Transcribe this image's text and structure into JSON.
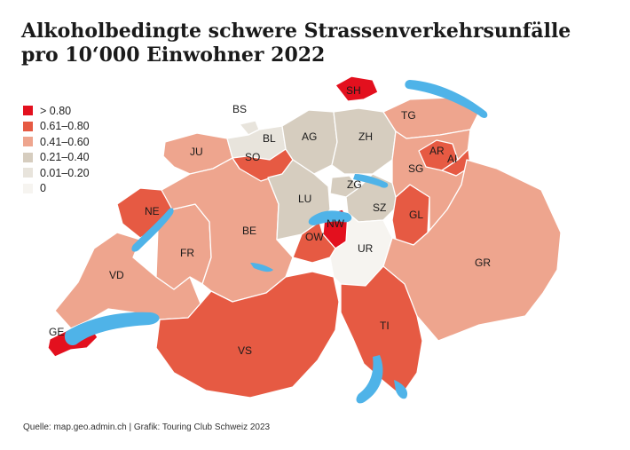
{
  "title_line1": "Alkoholbedingte schwere Strassenverkehrsunfälle",
  "title_line2": "pro 10‘000 Einwohner 2022",
  "legend": [
    {
      "label": "> 0.80",
      "color": "#e3101e"
    },
    {
      "label": "0.61–0.80",
      "color": "#e65a43"
    },
    {
      "label": "0.41–0.60",
      "color": "#eea58e"
    },
    {
      "label": "0.21–0.40",
      "color": "#d6cdbf"
    },
    {
      "label": "0.01–0.20",
      "color": "#e8e4dc"
    },
    {
      "label": "0",
      "color": "#f6f4f0"
    }
  ],
  "lake_color": "#4fb3e8",
  "cantons": {
    "SH": {
      "label": "SH",
      "class": "> 0.80"
    },
    "BS": {
      "label": "BS",
      "class": "0.01–0.20"
    },
    "TG": {
      "label": "TG",
      "class": "0.41–0.60"
    },
    "BL": {
      "label": "BL",
      "class": "0.01–0.20"
    },
    "AG": {
      "label": "AG",
      "class": "0.21–0.40"
    },
    "ZH": {
      "label": "ZH",
      "class": "0.21–0.40"
    },
    "AR": {
      "label": "AR",
      "class": "0.61–0.80"
    },
    "AI": {
      "label": "AI",
      "class": "0.61–0.80"
    },
    "JU": {
      "label": "JU",
      "class": "0.41–0.60"
    },
    "SO": {
      "label": "SO",
      "class": "0.61–0.80"
    },
    "SG": {
      "label": "SG",
      "class": "0.41–0.60"
    },
    "ZG": {
      "label": "ZG",
      "class": "0.21–0.40"
    },
    "NE": {
      "label": "NE",
      "class": "0.61–0.80"
    },
    "LU": {
      "label": "LU",
      "class": "0.21–0.40"
    },
    "SZ": {
      "label": "SZ",
      "class": "0.21–0.40"
    },
    "GL": {
      "label": "GL",
      "class": "0.61–0.80"
    },
    "NW": {
      "label": "NW",
      "class": "> 0.80"
    },
    "BE": {
      "label": "BE",
      "class": "0.41–0.60"
    },
    "OW": {
      "label": "OW",
      "class": "0.61–0.80"
    },
    "FR": {
      "label": "FR",
      "class": "0.41–0.60"
    },
    "UR": {
      "label": "UR",
      "class": "0"
    },
    "GR": {
      "label": "GR",
      "class": "0.41–0.60"
    },
    "VD": {
      "label": "VD",
      "class": "0.41–0.60"
    },
    "GE": {
      "label": "GE",
      "class": "> 0.80"
    },
    "TI": {
      "label": "TI",
      "class": "0.61–0.80"
    },
    "VS": {
      "label": "VS",
      "class": "0.61–0.80"
    }
  },
  "source": "Quelle: map.geo.admin.ch | Grafik: Touring Club Schweiz 2023"
}
